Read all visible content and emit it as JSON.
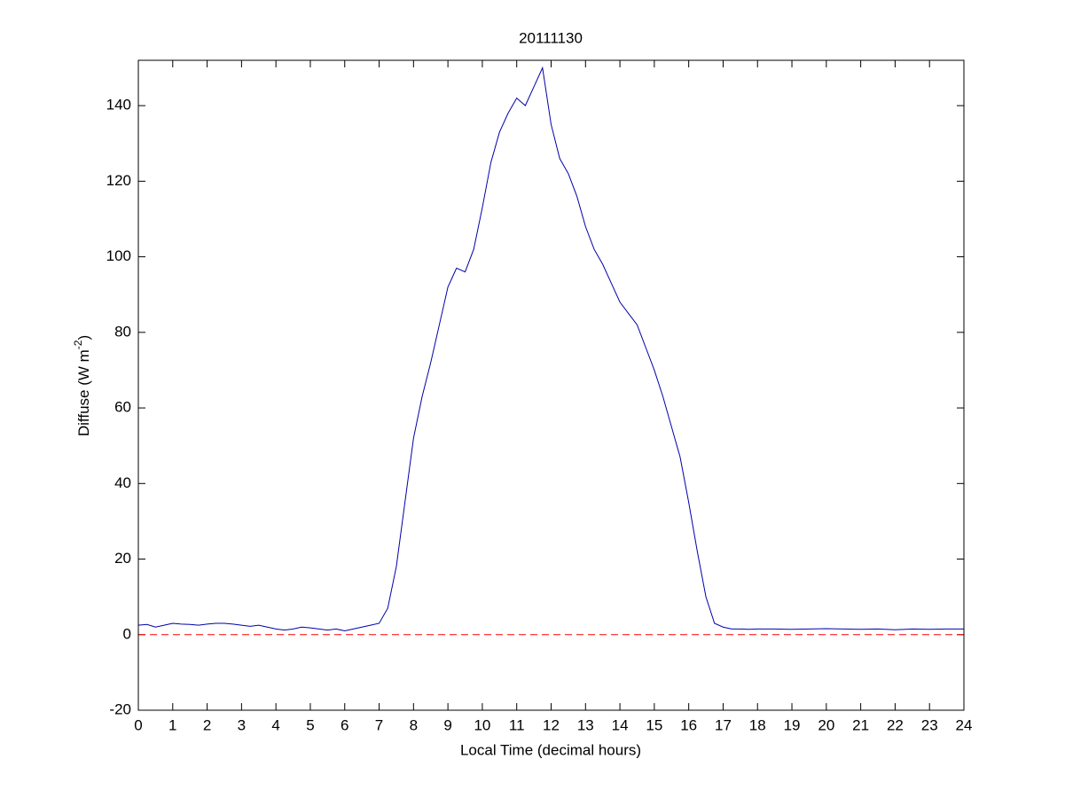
{
  "chart_data": {
    "type": "line",
    "title": "20111130",
    "x_label": "Local Time (decimal hours)",
    "y_label": "Diffuse (W m",
    "y_label_superscript": "-2",
    "y_label_suffix": ")",
    "xlim": [
      0,
      24
    ],
    "xticks": [
      0,
      1,
      2,
      3,
      4,
      5,
      6,
      7,
      8,
      9,
      10,
      11,
      12,
      13,
      14,
      15,
      16,
      17,
      18,
      19,
      20,
      21,
      22,
      23,
      24
    ],
    "ylim": [
      -20,
      152
    ],
    "yticks": [
      -20,
      0,
      20,
      40,
      60,
      80,
      100,
      120,
      140
    ],
    "reference_line": {
      "value": 0,
      "color": "#ff0000"
    },
    "x": [
      0,
      0.25,
      0.5,
      0.75,
      1,
      1.25,
      1.5,
      1.75,
      2,
      2.25,
      2.5,
      2.75,
      3,
      3.25,
      3.5,
      3.75,
      4,
      4.25,
      4.5,
      4.75,
      5,
      5.25,
      5.5,
      5.75,
      6,
      6.25,
      6.5,
      6.75,
      7,
      7.25,
      7.5,
      7.75,
      8,
      8.25,
      8.5,
      8.75,
      9,
      9.25,
      9.5,
      9.75,
      10,
      10.25,
      10.5,
      10.75,
      11,
      11.25,
      11.5,
      11.75,
      12,
      12.25,
      12.5,
      12.75,
      13,
      13.25,
      13.5,
      13.75,
      14,
      14.25,
      14.5,
      14.75,
      15,
      15.25,
      15.5,
      15.75,
      16,
      16.25,
      16.5,
      16.75,
      17,
      17.25,
      17.5,
      17.75,
      18,
      18.5,
      19,
      19.5,
      20,
      20.5,
      21,
      21.5,
      22,
      22.5,
      23,
      23.5,
      24
    ],
    "series": [
      {
        "color": "#0000aa",
        "values": [
          2.5,
          2.7,
          2,
          2.5,
          3,
          2.8,
          2.7,
          2.5,
          2.8,
          3,
          3,
          2.8,
          2.5,
          2.2,
          2.5,
          2,
          1.5,
          1.2,
          1.5,
          2,
          1.8,
          1.5,
          1.2,
          1.5,
          1,
          1.5,
          2,
          2.5,
          3,
          7,
          18,
          35,
          52,
          63,
          72,
          82,
          92,
          97,
          96,
          102,
          113,
          125,
          133,
          138,
          142,
          140,
          145,
          150,
          135,
          126,
          122,
          116,
          108,
          102,
          98,
          93,
          88,
          85,
          82,
          76,
          70,
          63,
          55,
          47,
          35,
          22,
          10,
          3,
          2,
          1.5,
          1.5,
          1.4,
          1.5,
          1.5,
          1.4,
          1.5,
          1.6,
          1.5,
          1.4,
          1.5,
          1.3,
          1.5,
          1.4,
          1.5,
          1.5
        ]
      }
    ]
  }
}
